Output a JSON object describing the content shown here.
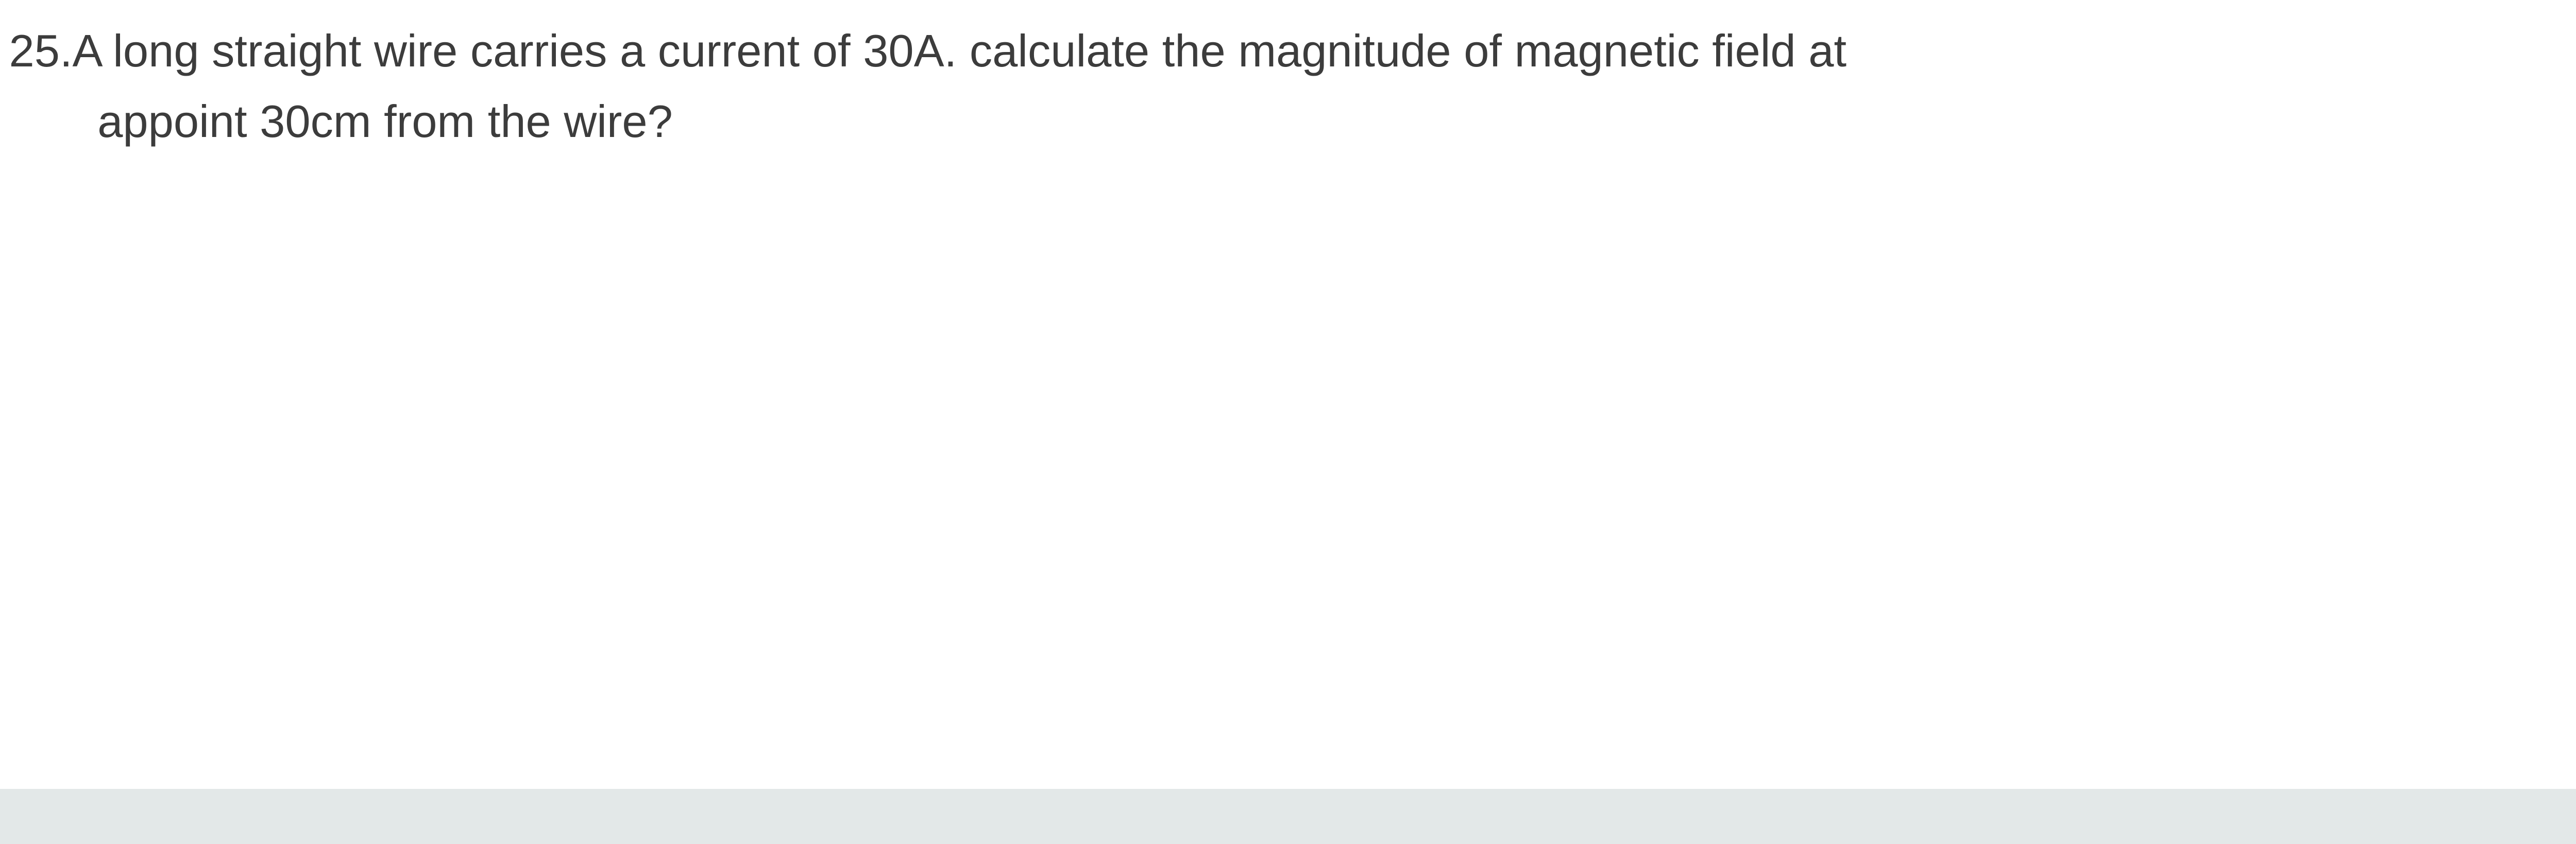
{
  "question": {
    "number": "25.",
    "line1": "A long straight wire carries a current of 30A. calculate the magnitude of magnetic field at",
    "line2": "appoint 30cm from the wire?"
  },
  "colors": {
    "text": "#3c3c3c",
    "background": "#ffffff",
    "footer_band": "#e3e8e8"
  },
  "typography": {
    "font_family": "Arial, Helvetica, sans-serif",
    "font_size_vw": 1.77,
    "line_height": 1.55
  }
}
